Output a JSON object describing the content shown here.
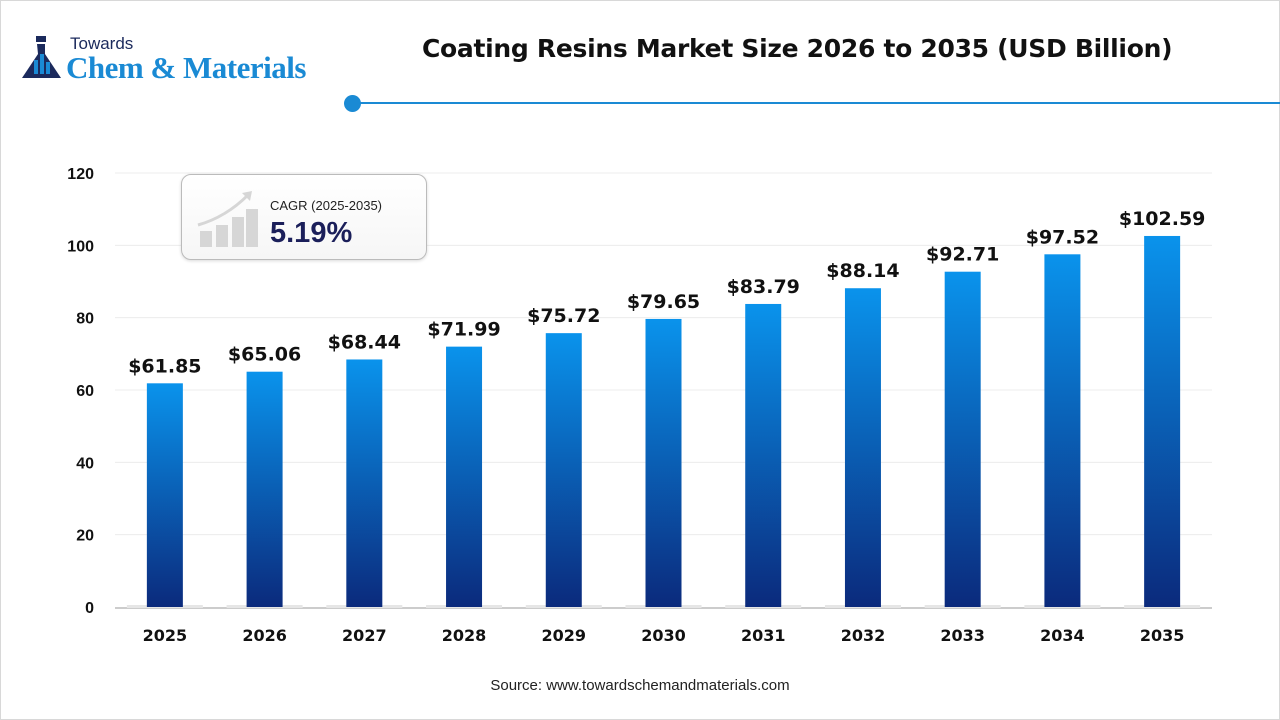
{
  "logo": {
    "line1": "Towards",
    "line2": "Chem & Materials"
  },
  "accent_color": "#1a8ad4",
  "cagr": {
    "label": "CAGR (2025-2035)",
    "value": "5.19%",
    "icon": "growth-chart-icon"
  },
  "source": "Source: www.towardschemandmaterials.com",
  "chart_data": {
    "type": "bar",
    "title": "Coating Resins Market Size 2026 to 2035 (USD Billion)",
    "categories": [
      "2025",
      "2026",
      "2027",
      "2028",
      "2029",
      "2030",
      "2031",
      "2032",
      "2033",
      "2034",
      "2035"
    ],
    "values": [
      61.85,
      65.06,
      68.44,
      71.99,
      75.72,
      79.65,
      83.79,
      88.14,
      92.71,
      97.52,
      102.59
    ],
    "data_labels": [
      "$61.85",
      "$65.06",
      "$68.44",
      "$71.99",
      "$75.72",
      "$79.65",
      "$83.79",
      "$88.14",
      "$92.71",
      "$97.52",
      "$102.59"
    ],
    "ylim": [
      0,
      120
    ],
    "yticks": [
      0,
      20,
      40,
      60,
      80,
      100,
      120
    ],
    "grid": true,
    "bar_gradient": [
      "#0a93ec",
      "#0b2a7c"
    ],
    "xlabel": "",
    "ylabel": ""
  }
}
